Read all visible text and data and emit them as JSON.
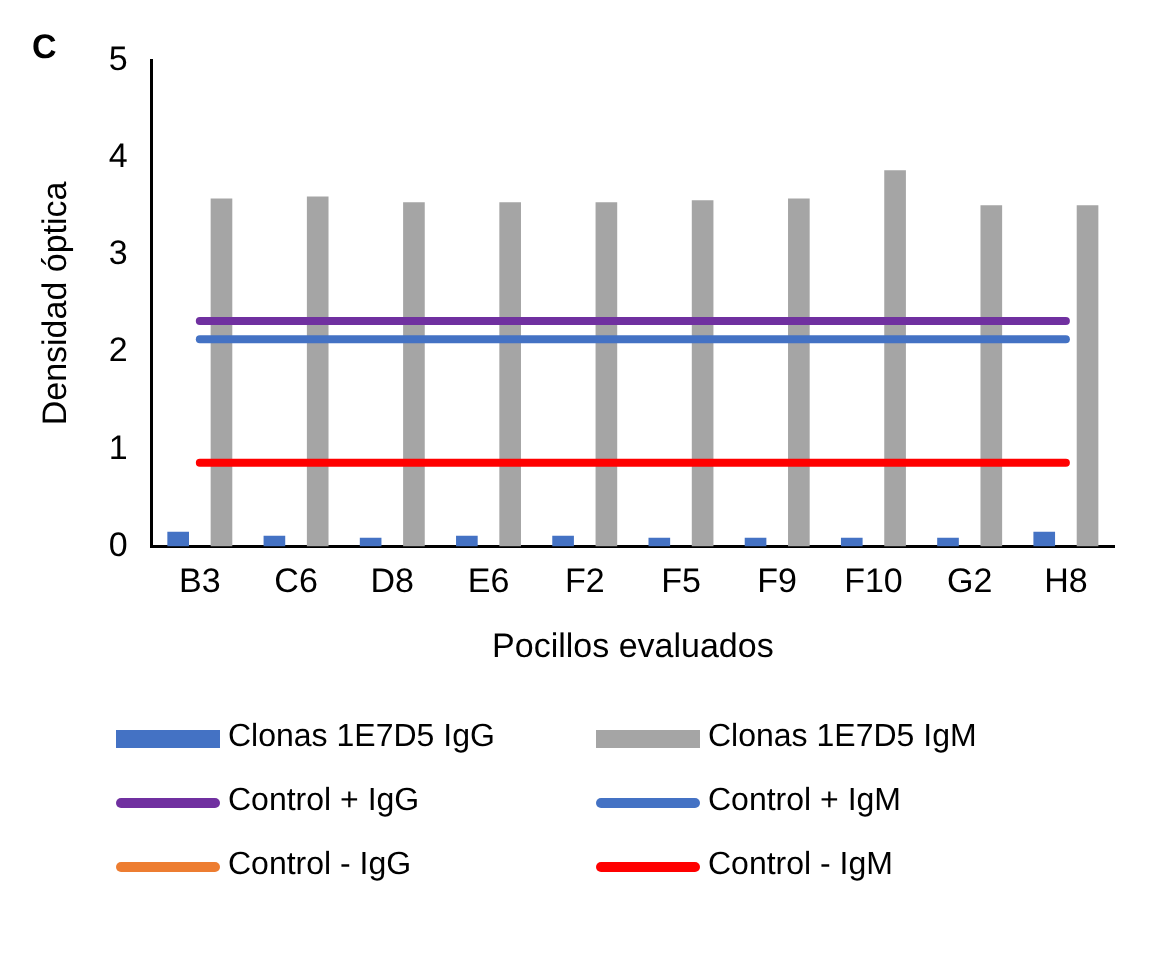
{
  "chart_data": {
    "type": "bar",
    "xlabel": "Pocillos evaluados",
    "ylabel": "Densidad óptica",
    "annotations": [
      "C"
    ],
    "categories": [
      "B3",
      "C6",
      "D8",
      "E6",
      "F2",
      "F5",
      "F9",
      "F10",
      "G2",
      "H8"
    ],
    "series": [
      {
        "name": "Clonas 1E7D5 IgG",
        "color": "#4472c4",
        "values": [
          0.15,
          0.11,
          0.09,
          0.11,
          0.11,
          0.09,
          0.09,
          0.09,
          0.09,
          0.15
        ]
      },
      {
        "name": "Clonas 1E7D5 IgM",
        "color": "#a5a5a5",
        "values": [
          3.58,
          3.6,
          3.54,
          3.54,
          3.54,
          3.56,
          3.58,
          3.87,
          3.51,
          3.51
        ]
      },
      {
        "name": "Control + IgG",
        "type": "line",
        "color": "#7030a0",
        "values": [
          2.32,
          2.32,
          2.32,
          2.32,
          2.32,
          2.32,
          2.32,
          2.32,
          2.32,
          2.32
        ]
      },
      {
        "name": "Control + IgM",
        "type": "line",
        "color": "#4472c4",
        "values": [
          2.13,
          2.13,
          2.13,
          2.13,
          2.13,
          2.13,
          2.13,
          2.13,
          2.13,
          2.13
        ]
      },
      {
        "name": "Control - IgG",
        "type": "line",
        "color": "#ed7d31",
        "values": [
          null,
          null,
          null,
          null,
          null,
          null,
          null,
          null,
          null,
          null
        ]
      },
      {
        "name": "Control - IgM",
        "type": "line",
        "color": "#ff0000",
        "values": [
          0.86,
          0.86,
          0.86,
          0.86,
          0.86,
          0.86,
          0.86,
          0.86,
          0.86,
          0.86
        ]
      }
    ],
    "ylim": [
      0,
      5
    ],
    "yticks": [
      0,
      1,
      2,
      3,
      4,
      5
    ],
    "grid": false,
    "legend": "bottom",
    "marker": "none"
  }
}
